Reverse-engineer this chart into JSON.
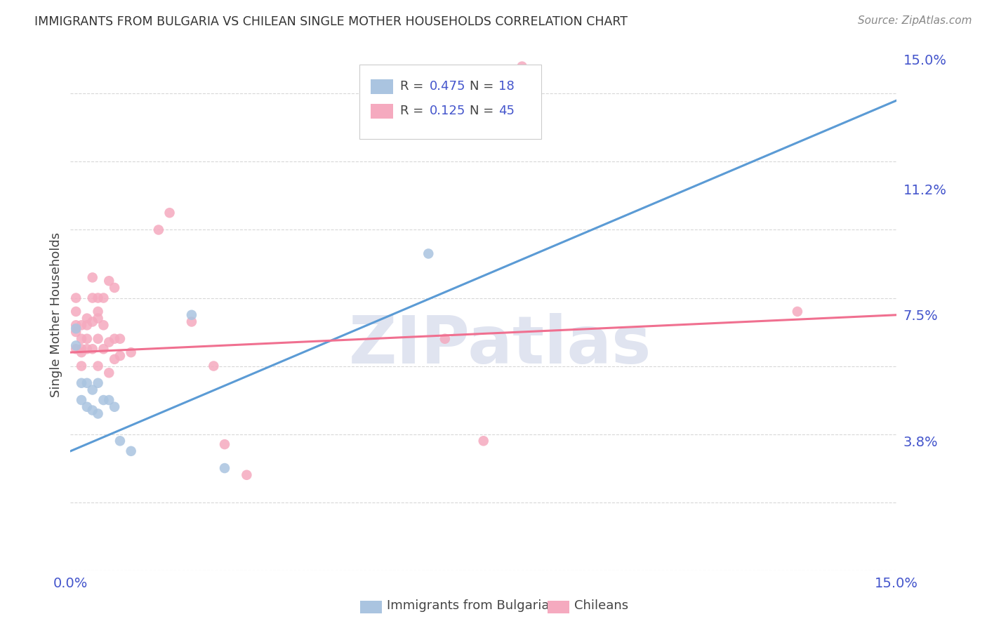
{
  "title": "IMMIGRANTS FROM BULGARIA VS CHILEAN SINGLE MOTHER HOUSEHOLDS CORRELATION CHART",
  "source": "Source: ZipAtlas.com",
  "ylabel": "Single Mother Households",
  "x_min": 0.0,
  "x_max": 0.15,
  "y_min": 0.0,
  "y_max": 0.15,
  "color_bulgaria": "#aac4e0",
  "color_chilean": "#f5aabf",
  "line_color_bulgaria": "#5b9bd5",
  "line_color_chilean": "#f07090",
  "bg_color": "#ffffff",
  "grid_color": "#d8d8d8",
  "dot_size_bulgaria": 110,
  "dot_size_chilean": 110,
  "bulgaria_r": "0.475",
  "bulgaria_n": "18",
  "chilean_r": "0.125",
  "chilean_n": "45",
  "bulgaria_scatter_x": [
    0.001,
    0.001,
    0.002,
    0.002,
    0.003,
    0.003,
    0.004,
    0.004,
    0.005,
    0.005,
    0.006,
    0.007,
    0.008,
    0.009,
    0.011,
    0.022,
    0.028,
    0.065
  ],
  "bulgaria_scatter_y": [
    0.071,
    0.066,
    0.055,
    0.05,
    0.055,
    0.048,
    0.053,
    0.047,
    0.055,
    0.046,
    0.05,
    0.05,
    0.048,
    0.038,
    0.035,
    0.075,
    0.03,
    0.093
  ],
  "chilean_scatter_x": [
    0.001,
    0.001,
    0.001,
    0.001,
    0.001,
    0.002,
    0.002,
    0.002,
    0.002,
    0.002,
    0.003,
    0.003,
    0.003,
    0.003,
    0.004,
    0.004,
    0.004,
    0.004,
    0.005,
    0.005,
    0.005,
    0.005,
    0.005,
    0.006,
    0.006,
    0.006,
    0.007,
    0.007,
    0.007,
    0.008,
    0.008,
    0.008,
    0.009,
    0.009,
    0.011,
    0.016,
    0.018,
    0.022,
    0.026,
    0.028,
    0.032,
    0.068,
    0.075,
    0.082,
    0.132
  ],
  "chilean_scatter_y": [
    0.07,
    0.065,
    0.072,
    0.076,
    0.08,
    0.065,
    0.068,
    0.072,
    0.064,
    0.06,
    0.068,
    0.074,
    0.072,
    0.065,
    0.08,
    0.086,
    0.073,
    0.065,
    0.06,
    0.068,
    0.076,
    0.08,
    0.074,
    0.065,
    0.072,
    0.08,
    0.058,
    0.067,
    0.085,
    0.062,
    0.068,
    0.083,
    0.063,
    0.068,
    0.064,
    0.1,
    0.105,
    0.073,
    0.06,
    0.037,
    0.028,
    0.068,
    0.038,
    0.148,
    0.076
  ],
  "line_bg_y0": 0.035,
  "line_bg_y1": 0.138,
  "line_pink_y0": 0.064,
  "line_pink_y1": 0.075,
  "watermark_text": "ZIPatlas",
  "watermark_color": "#e0e4f0",
  "watermark_size": 68
}
